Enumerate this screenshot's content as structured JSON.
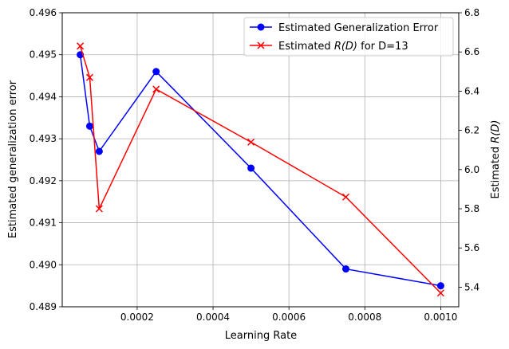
{
  "chart_data": {
    "type": "line",
    "x": [
      5e-05,
      7.5e-05,
      0.0001,
      0.00025,
      0.0005,
      0.00075,
      0.001
    ],
    "xlabel": "Learning Rate",
    "xticks": [
      0.0002,
      0.0004,
      0.0006,
      0.0008,
      0.001
    ],
    "xtick_labels": [
      "0.0002",
      "0.0004",
      "0.0006",
      "0.0008",
      "0.0010"
    ],
    "xlim": [
      2.5e-06,
      0.0010475
    ],
    "grid": true,
    "left_axis": {
      "label": "Estimated generalization error",
      "ylim": [
        0.489,
        0.496
      ],
      "ticks": [
        0.489,
        0.49,
        0.491,
        0.492,
        0.493,
        0.494,
        0.495,
        0.496
      ],
      "tick_labels": [
        "0.489",
        "0.490",
        "0.491",
        "0.492",
        "0.493",
        "0.494",
        "0.495",
        "0.496"
      ]
    },
    "right_axis": {
      "label": "Estimated R(D)",
      "ylim": [
        5.3,
        6.8
      ],
      "ticks": [
        5.4,
        5.6,
        5.8,
        6.0,
        6.2,
        6.4,
        6.6,
        6.8
      ],
      "tick_labels": [
        "5.4",
        "5.6",
        "5.8",
        "6.0",
        "6.2",
        "6.4",
        "6.6",
        "6.8"
      ]
    },
    "series": [
      {
        "name": "Estimated Generalization Error",
        "axis": "left",
        "color": "#0000ff",
        "marker": "circle",
        "values": [
          0.495,
          0.4933,
          0.4927,
          0.4946,
          0.4923,
          0.4899,
          0.4895
        ]
      },
      {
        "name": "Estimated R(D) for D=13",
        "axis": "right",
        "color": "#ff0000",
        "marker": "x",
        "values": [
          6.63,
          6.47,
          5.8,
          6.41,
          6.14,
          5.86,
          5.37
        ]
      }
    ],
    "legend_position": "top-right",
    "legend_entries": [
      {
        "prefix": "Estimated Generalization Error",
        "italic": "",
        "suffix": ""
      },
      {
        "prefix": "Estimated ",
        "italic": "R(D)",
        "suffix": " for D=13"
      }
    ],
    "right_label_parts": {
      "prefix": "Estimated ",
      "italic": "R(D)"
    }
  }
}
